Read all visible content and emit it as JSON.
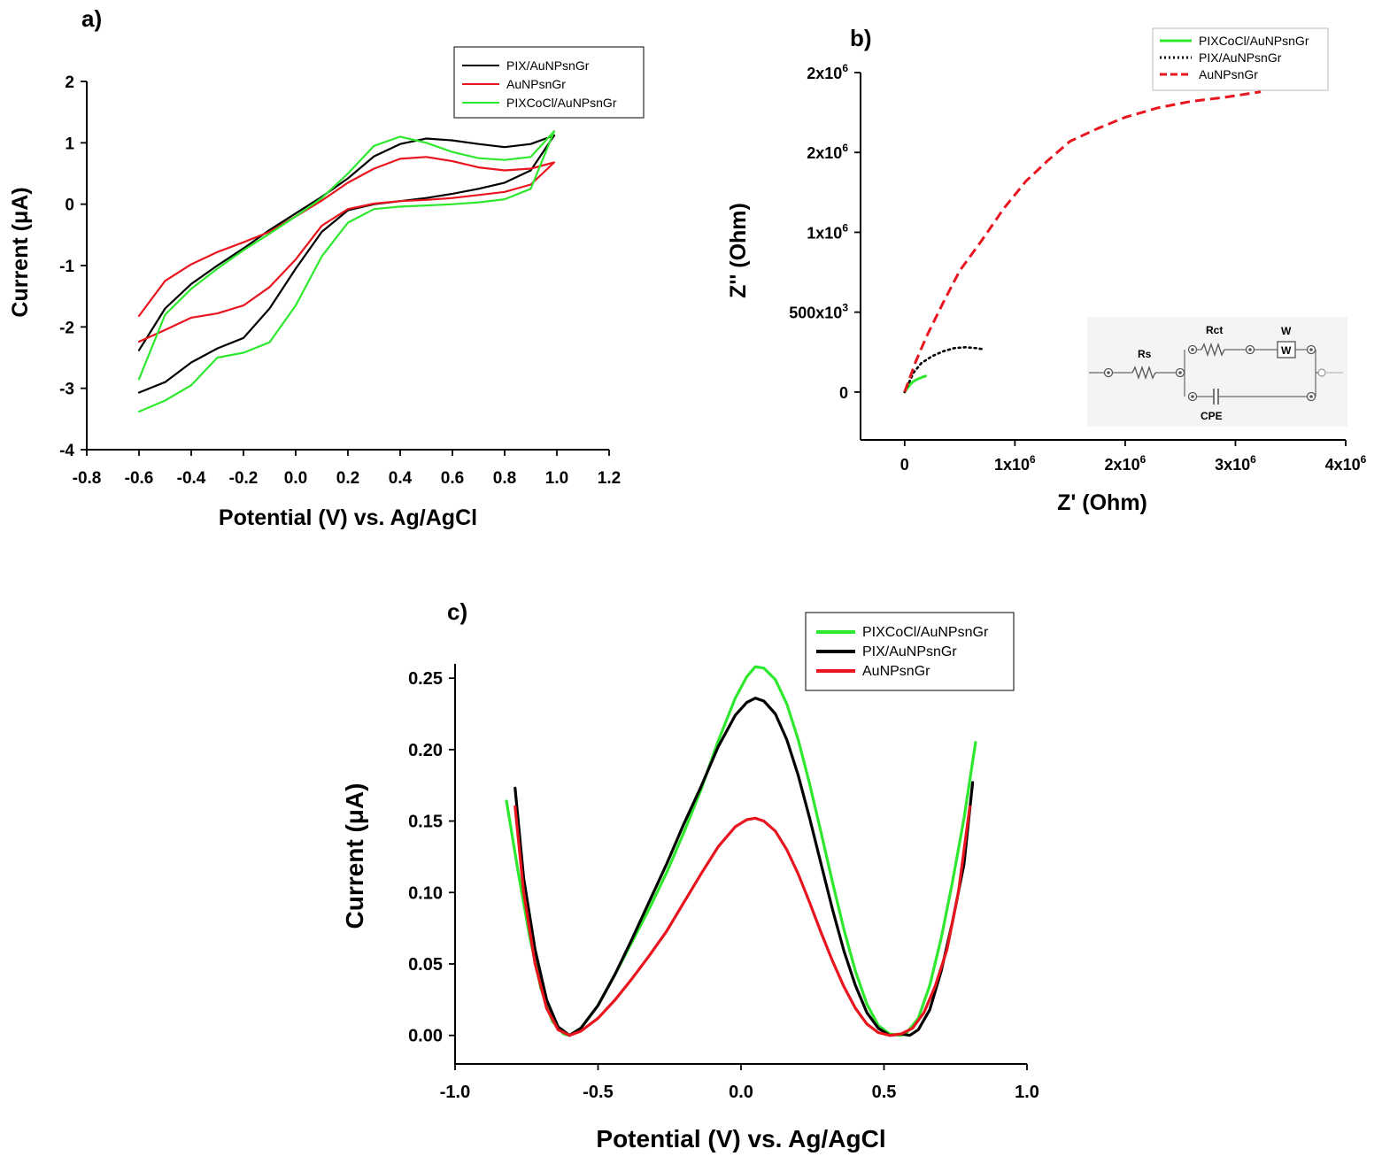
{
  "chart_data": [
    {
      "panel": "a)",
      "type": "line",
      "title": "",
      "xlabel": "Potential (V) vs. Ag/AgCl",
      "ylabel": "Current (μA)",
      "xlim": [
        -0.8,
        1.2
      ],
      "ylim": [
        -4,
        2
      ],
      "xticks": [
        -0.8,
        -0.6,
        -0.4,
        -0.2,
        0.0,
        0.2,
        0.4,
        0.6,
        0.8,
        1.0,
        1.2
      ],
      "xtick_labels": [
        "-0.8",
        "-0.6",
        "-0.4",
        "-0.2",
        "0.0",
        "0.2",
        "0.4",
        "0.6",
        "0.8",
        "1.0",
        "1.2"
      ],
      "yticks": [
        -4,
        -3,
        -2,
        -1,
        0,
        1,
        2
      ],
      "ytick_labels": [
        "-4",
        "-3",
        "-2",
        "-1",
        "0",
        "1",
        "2"
      ],
      "legend": "top-right",
      "series": [
        {
          "name": "PIX/AuNPsnGr",
          "color": "#000000",
          "x": [
            -0.6,
            -0.5,
            -0.4,
            -0.3,
            -0.2,
            -0.1,
            0.0,
            0.1,
            0.2,
            0.3,
            0.4,
            0.5,
            0.6,
            0.7,
            0.8,
            0.9,
            0.99,
            0.9,
            0.8,
            0.7,
            0.6,
            0.5,
            0.4,
            0.3,
            0.2,
            0.1,
            0.0,
            -0.1,
            -0.2,
            -0.3,
            -0.4,
            -0.5,
            -0.6
          ],
          "y": [
            -3.07,
            -2.9,
            -2.58,
            -2.35,
            -2.18,
            -1.7,
            -1.05,
            -0.45,
            -0.1,
            0.0,
            0.05,
            0.1,
            0.17,
            0.25,
            0.35,
            0.55,
            1.12,
            0.98,
            0.93,
            0.98,
            1.04,
            1.07,
            0.98,
            0.78,
            0.42,
            0.12,
            -0.15,
            -0.42,
            -0.72,
            -1.0,
            -1.3,
            -1.7,
            -2.38
          ]
        },
        {
          "name": "AuNPsnGr",
          "color": "#e8141e",
          "x": [
            -0.6,
            -0.5,
            -0.4,
            -0.3,
            -0.2,
            -0.1,
            0.0,
            0.1,
            0.2,
            0.3,
            0.4,
            0.5,
            0.6,
            0.7,
            0.8,
            0.9,
            0.99,
            0.9,
            0.8,
            0.7,
            0.6,
            0.5,
            0.4,
            0.3,
            0.2,
            0.1,
            0.0,
            -0.1,
            -0.2,
            -0.3,
            -0.4,
            -0.5,
            -0.6
          ],
          "y": [
            -2.24,
            -2.05,
            -1.85,
            -1.78,
            -1.65,
            -1.35,
            -0.9,
            -0.35,
            -0.08,
            0.01,
            0.05,
            0.07,
            0.1,
            0.15,
            0.2,
            0.32,
            0.68,
            0.58,
            0.55,
            0.6,
            0.7,
            0.77,
            0.74,
            0.58,
            0.35,
            0.06,
            -0.2,
            -0.45,
            -0.62,
            -0.78,
            -0.98,
            -1.25,
            -1.82
          ]
        },
        {
          "name": "PIXCoCl/AuNPsnGr",
          "color": "#2ee82e",
          "x": [
            -0.6,
            -0.5,
            -0.4,
            -0.3,
            -0.2,
            -0.1,
            0.0,
            0.1,
            0.2,
            0.3,
            0.4,
            0.5,
            0.6,
            0.7,
            0.8,
            0.9,
            0.99,
            0.9,
            0.8,
            0.7,
            0.6,
            0.5,
            0.4,
            0.3,
            0.2,
            0.1,
            0.0,
            -0.1,
            -0.2,
            -0.3,
            -0.4,
            -0.5,
            -0.6
          ],
          "y": [
            -3.38,
            -3.2,
            -2.95,
            -2.5,
            -2.42,
            -2.25,
            -1.65,
            -0.85,
            -0.3,
            -0.08,
            -0.04,
            -0.02,
            0.0,
            0.03,
            0.08,
            0.25,
            1.19,
            0.77,
            0.72,
            0.75,
            0.85,
            1.0,
            1.1,
            0.95,
            0.5,
            0.1,
            -0.2,
            -0.48,
            -0.75,
            -1.05,
            -1.38,
            -1.8,
            -2.85
          ]
        }
      ]
    },
    {
      "panel": "b)",
      "type": "line",
      "title": "",
      "xlabel": "Z' (Ohm)",
      "ylabel": "Z'' (Ohm)",
      "xlim": [
        -400000,
        4000000
      ],
      "ylim": [
        -300000,
        2000000
      ],
      "xticks": [
        0,
        1000000,
        2000000,
        3000000,
        4000000
      ],
      "xtick_labels": [
        "0",
        "1x10^6",
        "2x10^6",
        "3x10^6",
        "4x10^6"
      ],
      "yticks": [
        0,
        500000,
        1000000,
        1500000,
        2000000
      ],
      "ytick_labels": [
        "0",
        "500x10^3",
        "1x10^6",
        "2x10^6",
        "2x10^6"
      ],
      "legend": "top-right",
      "inset_labels": [
        "Rs",
        "Rct",
        "W",
        "W",
        "CPE"
      ],
      "series": [
        {
          "name": "PIXCoCl/AuNPsnGr",
          "color": "#2ee82e",
          "style": "solid",
          "x": [
            0,
            30000,
            60000,
            90000,
            120000,
            160000,
            190000
          ],
          "y": [
            0,
            30000,
            55000,
            70000,
            82000,
            93000,
            100000
          ]
        },
        {
          "name": "PIX/AuNPsnGr",
          "color": "#000000",
          "style": "dotted",
          "x": [
            0,
            80000,
            150000,
            250000,
            350000,
            450000,
            550000,
            650000,
            710000
          ],
          "y": [
            0,
            120000,
            180000,
            225000,
            255000,
            275000,
            280000,
            275000,
            268000
          ]
        },
        {
          "name": "AuNPsnGr",
          "color": "#e8141e",
          "style": "dashed",
          "x": [
            0,
            100000,
            200000,
            350000,
            500000,
            700000,
            900000,
            1100000,
            1300000,
            1500000,
            1750000,
            2000000,
            2300000,
            2600000,
            2900000,
            3230000
          ],
          "y": [
            0,
            190000,
            350000,
            560000,
            760000,
            950000,
            1150000,
            1320000,
            1450000,
            1570000,
            1650000,
            1720000,
            1780000,
            1820000,
            1845000,
            1880000
          ]
        }
      ]
    },
    {
      "panel": "c)",
      "type": "line",
      "title": "",
      "xlabel": "Potential (V) vs. Ag/AgCl",
      "ylabel": "Current (μA)",
      "xlim": [
        -1.0,
        1.0
      ],
      "ylim": [
        -0.02,
        0.26
      ],
      "xticks": [
        -1.0,
        -0.5,
        0.0,
        0.5,
        1.0
      ],
      "xtick_labels": [
        "-1.0",
        "-0.5",
        "0.0",
        "0.5",
        "1.0"
      ],
      "yticks": [
        0.0,
        0.05,
        0.1,
        0.15,
        0.2,
        0.25
      ],
      "ytick_labels": [
        "0.00",
        "0.05",
        "0.10",
        "0.15",
        "0.20",
        "0.25"
      ],
      "legend": "top-right",
      "series": [
        {
          "name": "PIXCoCl/AuNPsnGr",
          "color": "#2ee82e",
          "x": [
            -0.82,
            -0.78,
            -0.74,
            -0.7,
            -0.66,
            -0.62,
            -0.6,
            -0.56,
            -0.5,
            -0.44,
            -0.38,
            -0.32,
            -0.26,
            -0.2,
            -0.14,
            -0.08,
            -0.02,
            0.02,
            0.05,
            0.08,
            0.12,
            0.16,
            0.2,
            0.24,
            0.28,
            0.32,
            0.36,
            0.4,
            0.44,
            0.48,
            0.52,
            0.56,
            0.58,
            0.62,
            0.66,
            0.7,
            0.74,
            0.78,
            0.82
          ],
          "y": [
            0.164,
            0.115,
            0.07,
            0.033,
            0.01,
            0.001,
            0.0,
            0.005,
            0.021,
            0.043,
            0.066,
            0.089,
            0.114,
            0.142,
            0.172,
            0.206,
            0.236,
            0.251,
            0.258,
            0.257,
            0.249,
            0.232,
            0.207,
            0.176,
            0.142,
            0.107,
            0.074,
            0.045,
            0.022,
            0.007,
            0.001,
            0.0,
            0.002,
            0.012,
            0.035,
            0.068,
            0.108,
            0.152,
            0.205
          ]
        },
        {
          "name": "PIX/AuNPsnGr",
          "color": "#000000",
          "x": [
            -0.79,
            -0.76,
            -0.72,
            -0.68,
            -0.64,
            -0.6,
            -0.56,
            -0.5,
            -0.44,
            -0.38,
            -0.32,
            -0.26,
            -0.2,
            -0.14,
            -0.08,
            -0.02,
            0.02,
            0.05,
            0.08,
            0.12,
            0.16,
            0.2,
            0.24,
            0.28,
            0.32,
            0.36,
            0.4,
            0.44,
            0.48,
            0.52,
            0.56,
            0.59,
            0.62,
            0.66,
            0.7,
            0.74,
            0.78,
            0.81
          ],
          "y": [
            0.173,
            0.11,
            0.06,
            0.025,
            0.006,
            0.0,
            0.005,
            0.021,
            0.043,
            0.068,
            0.094,
            0.12,
            0.148,
            0.174,
            0.202,
            0.224,
            0.233,
            0.236,
            0.234,
            0.225,
            0.207,
            0.182,
            0.152,
            0.12,
            0.088,
            0.059,
            0.035,
            0.016,
            0.005,
            0.0,
            0.001,
            0.0,
            0.004,
            0.018,
            0.045,
            0.08,
            0.12,
            0.177
          ]
        },
        {
          "name": "AuNPsnGr",
          "color": "#e8141e",
          "x": [
            -0.79,
            -0.76,
            -0.72,
            -0.68,
            -0.64,
            -0.6,
            -0.56,
            -0.5,
            -0.44,
            -0.38,
            -0.32,
            -0.26,
            -0.2,
            -0.14,
            -0.08,
            -0.02,
            0.02,
            0.05,
            0.08,
            0.12,
            0.16,
            0.2,
            0.24,
            0.28,
            0.32,
            0.36,
            0.4,
            0.44,
            0.48,
            0.52,
            0.56,
            0.6,
            0.64,
            0.68,
            0.72,
            0.76,
            0.8
          ],
          "y": [
            0.16,
            0.1,
            0.05,
            0.019,
            0.004,
            0.0,
            0.003,
            0.012,
            0.025,
            0.04,
            0.056,
            0.073,
            0.093,
            0.113,
            0.132,
            0.146,
            0.151,
            0.152,
            0.15,
            0.143,
            0.13,
            0.113,
            0.093,
            0.072,
            0.052,
            0.034,
            0.019,
            0.008,
            0.002,
            0.0,
            0.001,
            0.005,
            0.016,
            0.035,
            0.06,
            0.1,
            0.16
          ]
        }
      ]
    }
  ]
}
